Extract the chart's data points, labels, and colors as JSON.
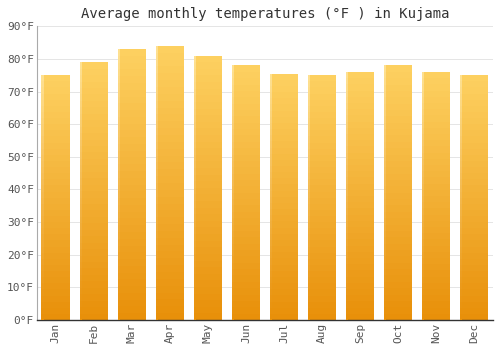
{
  "months": [
    "Jan",
    "Feb",
    "Mar",
    "Apr",
    "May",
    "Jun",
    "Jul",
    "Aug",
    "Sep",
    "Oct",
    "Nov",
    "Dec"
  ],
  "values": [
    75,
    79,
    83,
    84,
    81,
    78,
    75.5,
    75,
    76,
    78,
    76,
    75
  ],
  "bar_color_bottom": "#E8900A",
  "bar_color_top": "#FDD060",
  "bar_color_left_highlight": "#FEE090",
  "title": "Average monthly temperatures (°F ) in Kujama",
  "ylabel_ticks": [
    "0°F",
    "10°F",
    "20°F",
    "30°F",
    "40°F",
    "50°F",
    "60°F",
    "70°F",
    "80°F",
    "90°F"
  ],
  "ytick_vals": [
    0,
    10,
    20,
    30,
    40,
    50,
    60,
    70,
    80,
    90
  ],
  "ylim": [
    0,
    90
  ],
  "background_color": "#ffffff",
  "grid_color": "#e0e0e0",
  "title_fontsize": 10,
  "tick_fontsize": 8,
  "font_family": "monospace",
  "bar_width": 0.75
}
